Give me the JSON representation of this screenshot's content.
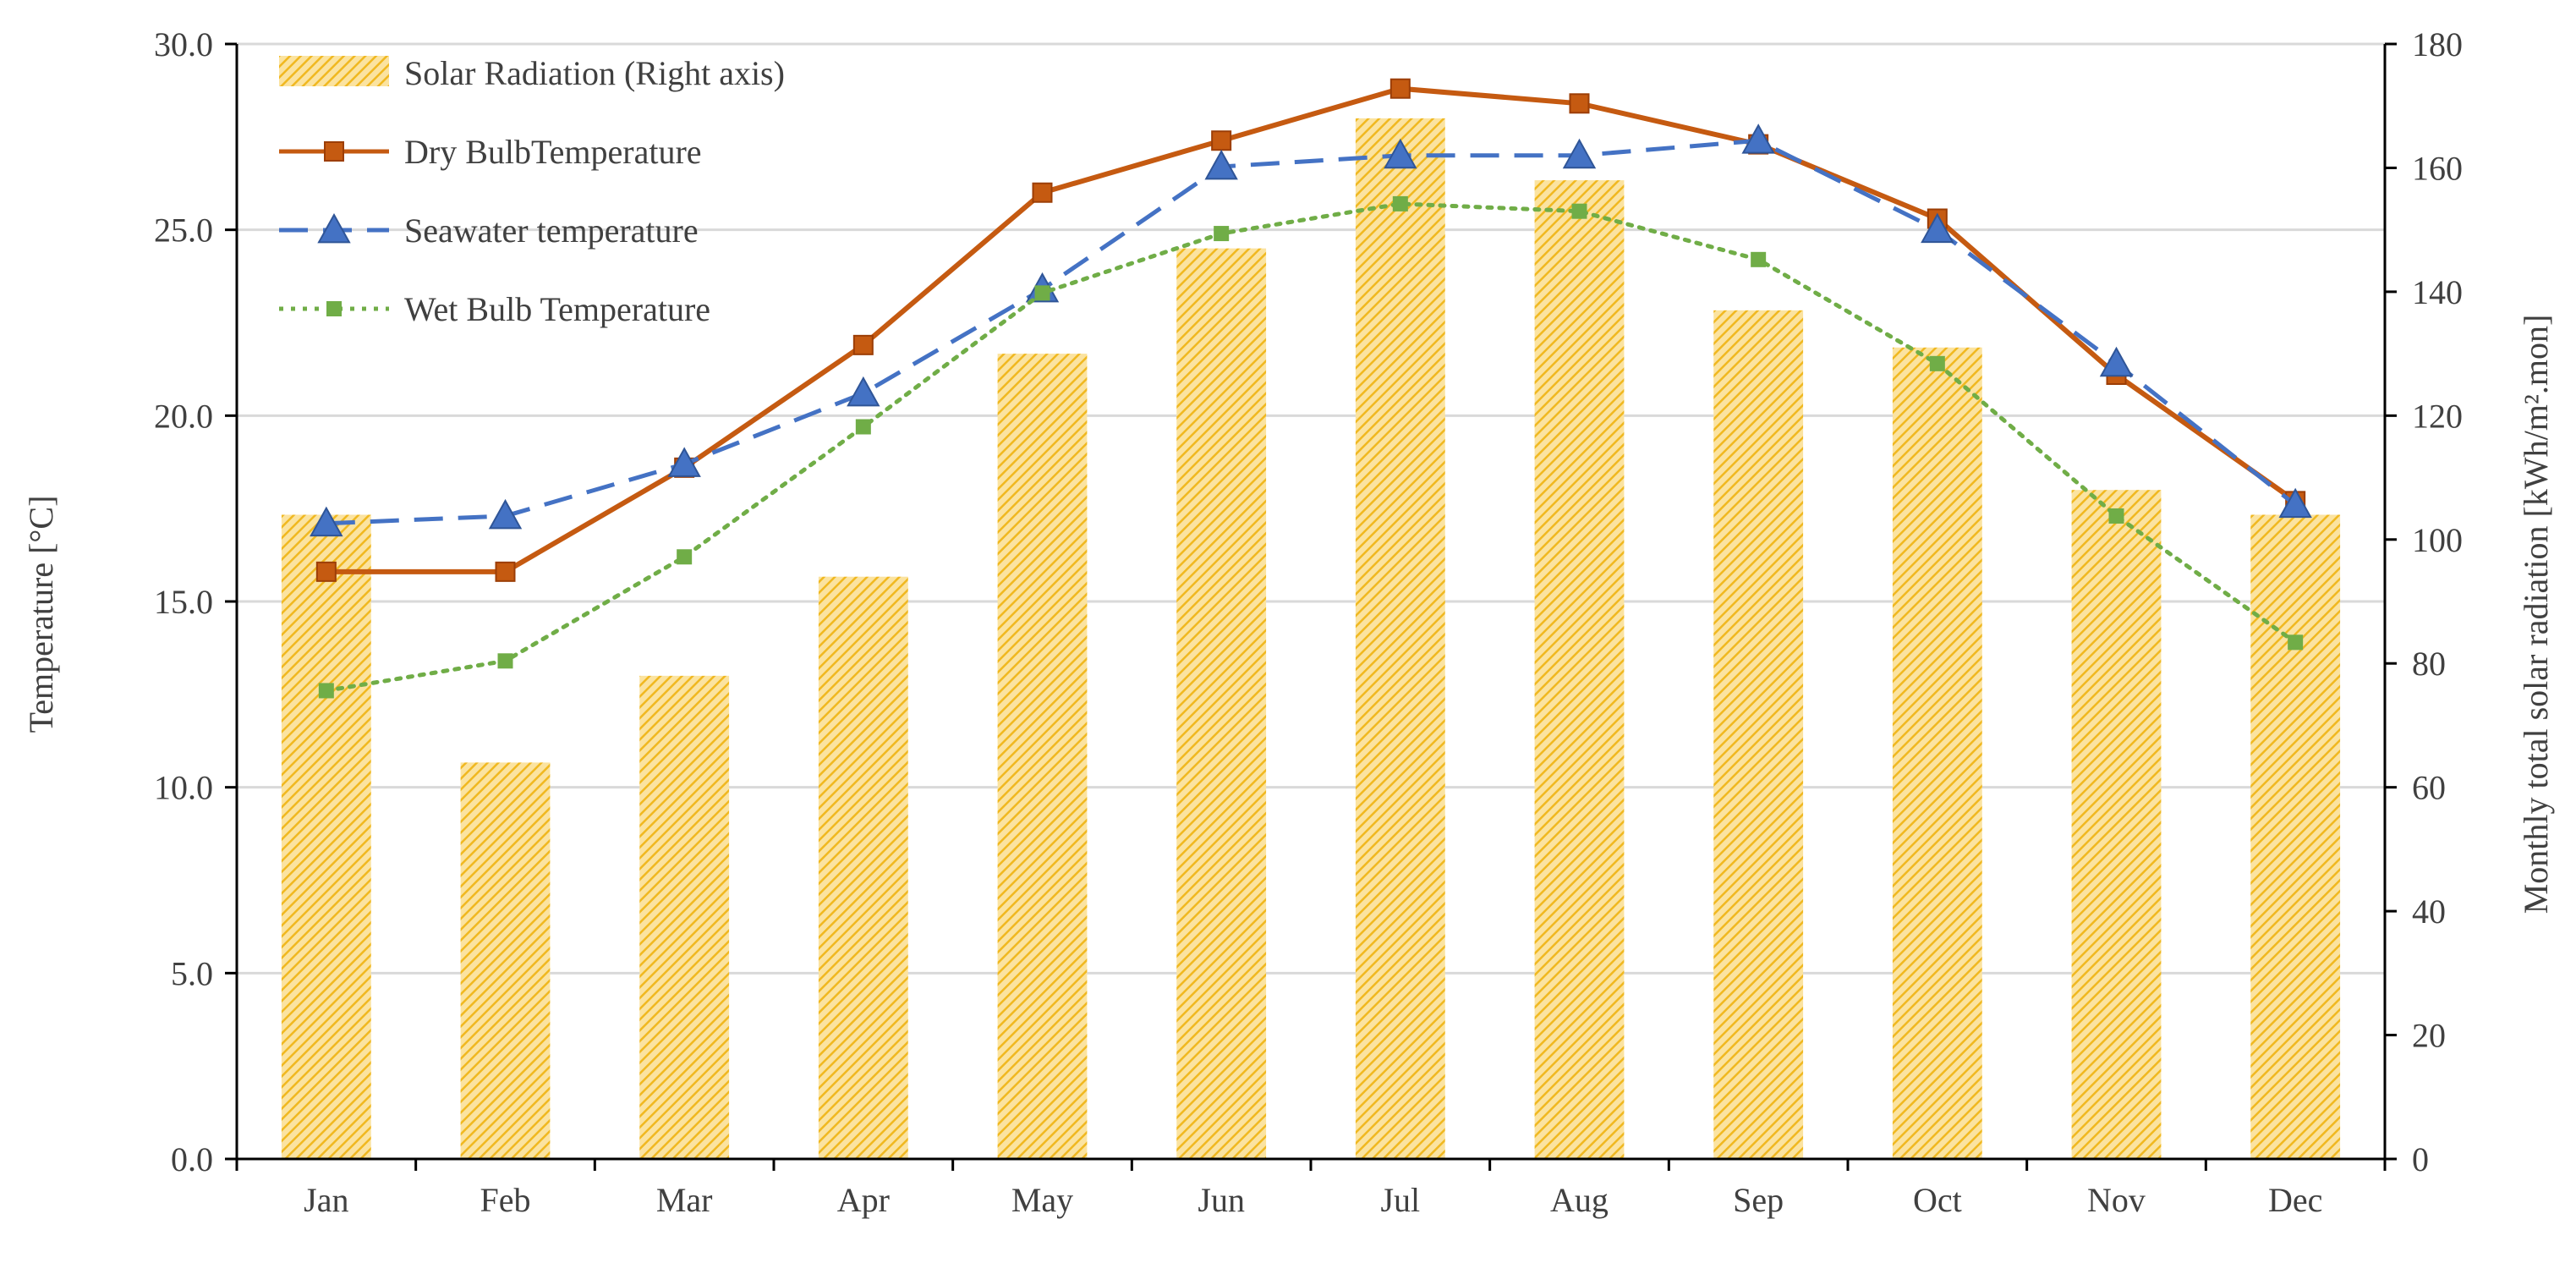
{
  "chart_data": {
    "type": "bar+line",
    "categories": [
      "Jan",
      "Feb",
      "Mar",
      "Apr",
      "May",
      "Jun",
      "Jul",
      "Aug",
      "Sep",
      "Oct",
      "Nov",
      "Dec"
    ],
    "left_axis": {
      "label": "Temperature [°C]",
      "ylim": [
        0,
        30
      ],
      "ticks": [
        "0.0",
        "5.0",
        "10.0",
        "15.0",
        "20.0",
        "25.0",
        "30.0"
      ]
    },
    "right_axis": {
      "label": "Monthly total solar radiation [kWh/m².mon]",
      "ylim": [
        0,
        180
      ],
      "ticks": [
        "0",
        "20",
        "40",
        "60",
        "80",
        "100",
        "120",
        "140",
        "160",
        "180"
      ]
    },
    "bars": {
      "name": "Solar Radiation (Right axis)",
      "axis": "right",
      "color": "#F5C242",
      "values": [
        104,
        64,
        78,
        94,
        130,
        147,
        168,
        158,
        137,
        131,
        108,
        104
      ]
    },
    "series": [
      {
        "name": "Dry BulbTemperature",
        "axis": "left",
        "color": "#C55A11",
        "marker": "square",
        "style": "solid",
        "values": [
          15.8,
          15.8,
          18.6,
          21.9,
          26.0,
          27.4,
          28.8,
          28.4,
          27.3,
          25.3,
          21.1,
          17.7
        ]
      },
      {
        "name": "Seawater temperature",
        "axis": "left",
        "color": "#4472C4",
        "marker": "triangle",
        "style": "dashed",
        "values": [
          17.1,
          17.3,
          18.7,
          20.6,
          23.4,
          26.7,
          27.0,
          27.0,
          27.4,
          25.0,
          21.4,
          17.6
        ]
      },
      {
        "name": "Wet Bulb Temperature",
        "axis": "left",
        "color": "#70AD47",
        "marker": "square-small",
        "style": "dotted",
        "values": [
          12.6,
          13.4,
          16.2,
          19.7,
          23.3,
          24.9,
          25.7,
          25.5,
          24.2,
          21.4,
          17.3,
          13.9
        ]
      }
    ],
    "legend": {
      "position": "top-left",
      "entries": [
        "Solar Radiation (Right axis)",
        "Dry BulbTemperature",
        "Seawater temperature",
        "Wet Bulb Temperature"
      ]
    },
    "grid": true
  }
}
